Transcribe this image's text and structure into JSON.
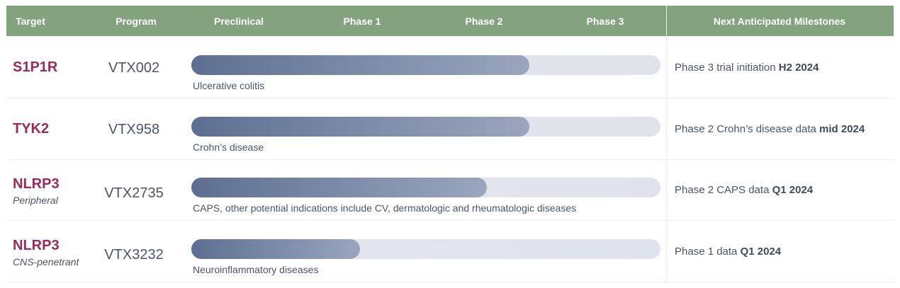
{
  "header": {
    "target": "Target",
    "program": "Program",
    "stages": [
      "Preclinical",
      "Phase 1",
      "Phase 2",
      "Phase 3"
    ],
    "milestones": "Next Anticipated Milestones"
  },
  "colors": {
    "header_bg": "#83a27e",
    "target_text": "#9b2a5a",
    "bar_start": "#5d6f91",
    "bar_end": "#9aa6be",
    "track": "#e3e6ed"
  },
  "chart_data": {
    "type": "bar",
    "orientation": "horizontal",
    "categories": [
      "Preclinical",
      "Phase 1",
      "Phase 2",
      "Phase 3"
    ],
    "rows": [
      {
        "target": "S1P1R",
        "subtitle": "",
        "program": "VTX002",
        "indication": "Ulcerative colitis",
        "progress": 0.72,
        "milestone": "Phase 3 trial initiation ",
        "milestone_bold": "H2 2024"
      },
      {
        "target": "TYK2",
        "subtitle": "",
        "program": "VTX958",
        "indication": "Crohn’s disease",
        "progress": 0.72,
        "milestone": "Phase 2 Crohn’s disease data ",
        "milestone_bold": "mid 2024"
      },
      {
        "target": "NLRP3",
        "subtitle": "Peripheral",
        "program": "VTX2735",
        "indication": "CAPS, other potential indications include CV, dermatologic and rheumatologic diseases",
        "progress": 0.63,
        "milestone": "Phase 2 CAPS data ",
        "milestone_bold": "Q1 2024"
      },
      {
        "target": "NLRP3",
        "subtitle": "CNS-penetrant",
        "program": "VTX3232",
        "indication": "Neuroinflammatory diseases",
        "progress": 0.36,
        "milestone": "Phase 1 data ",
        "milestone_bold": "Q1 2024"
      }
    ]
  }
}
